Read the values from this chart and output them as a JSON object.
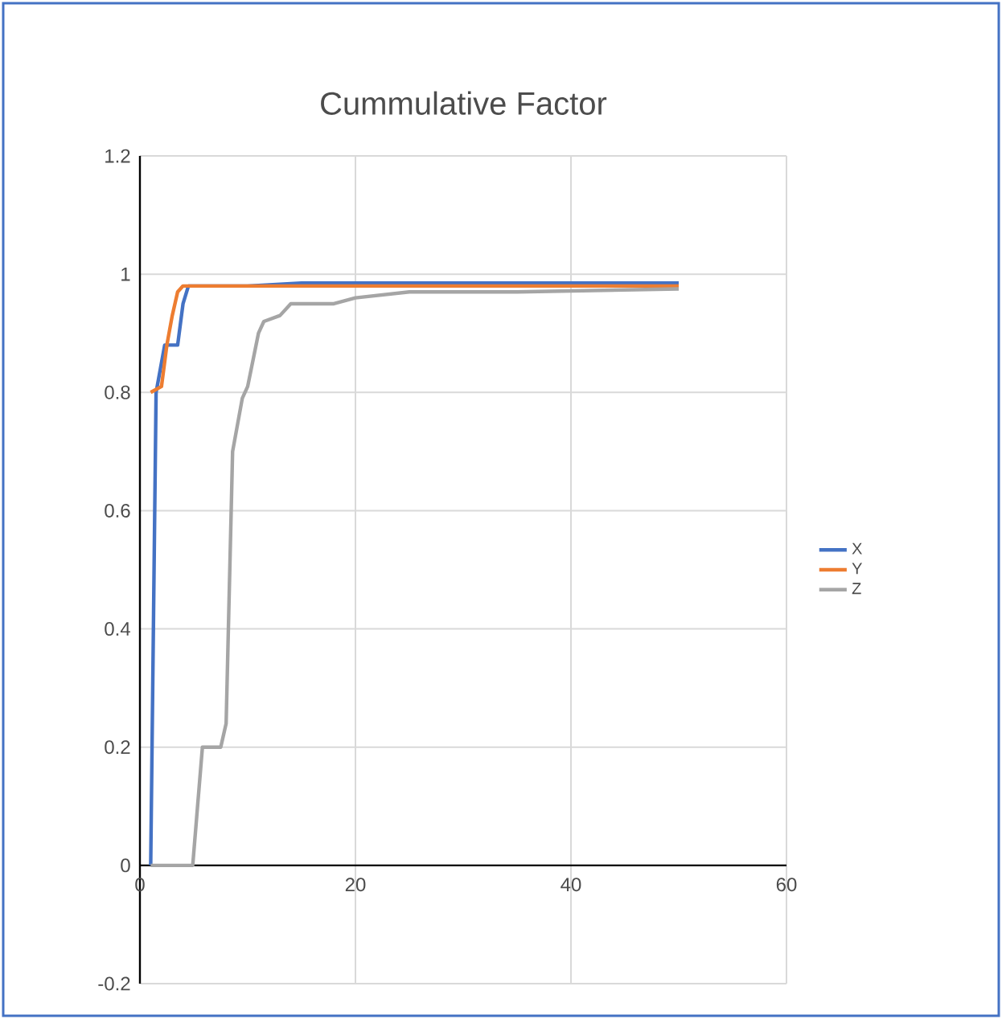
{
  "chart_data": {
    "type": "line",
    "title": "Cummulative Factor",
    "series": [
      {
        "name": "X",
        "color": "#4472c4",
        "x": [
          1,
          1.5,
          2,
          2.3,
          3.5,
          4,
          4.5,
          5,
          10,
          15,
          20,
          30,
          40,
          50
        ],
        "values": [
          0,
          0.8,
          0.85,
          0.88,
          0.88,
          0.95,
          0.98,
          0.98,
          0.98,
          0.985,
          0.985,
          0.985,
          0.985,
          0.985
        ]
      },
      {
        "name": "Y",
        "color": "#ed7d31",
        "x": [
          1,
          2,
          2.5,
          3,
          3.5,
          4,
          5,
          10,
          20,
          30,
          40,
          50
        ],
        "values": [
          0.8,
          0.81,
          0.88,
          0.93,
          0.97,
          0.98,
          0.98,
          0.98,
          0.98,
          0.98,
          0.98,
          0.98
        ]
      },
      {
        "name": "Z",
        "color": "#a5a5a5",
        "x": [
          1,
          4.9,
          5.8,
          7.5,
          8,
          8.6,
          9.5,
          10,
          11,
          11.5,
          13,
          14,
          18,
          20,
          25,
          35,
          50
        ],
        "values": [
          0,
          0,
          0.2,
          0.2,
          0.24,
          0.7,
          0.79,
          0.81,
          0.9,
          0.92,
          0.93,
          0.95,
          0.95,
          0.96,
          0.97,
          0.97,
          0.975
        ]
      }
    ],
    "xlim": [
      0,
      60
    ],
    "xticks": [
      0,
      20,
      40,
      60
    ],
    "ylim": [
      -0.2,
      1.2
    ],
    "yticks": [
      -0.2,
      0,
      0.2,
      0.4,
      0.6,
      0.8,
      1,
      1.2
    ],
    "grid": true,
    "legend": "right",
    "marker": "none",
    "line_style": "solid"
  }
}
